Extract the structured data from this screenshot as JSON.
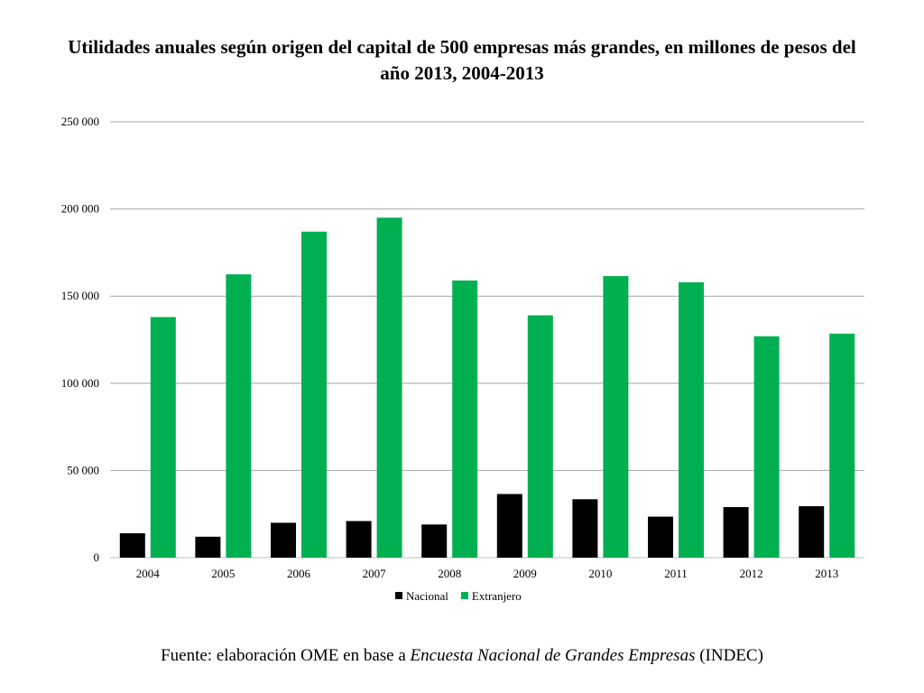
{
  "chart_data": {
    "type": "bar",
    "title": "Utilidades anuales según origen del capital de 500 empresas más grandes, en millones de pesos del año 2013, 2004-2013",
    "categories": [
      "2004",
      "2005",
      "2006",
      "2007",
      "2008",
      "2009",
      "2010",
      "2011",
      "2012",
      "2013"
    ],
    "series": [
      {
        "name": "Nacional",
        "color": "#000000",
        "values": [
          14000,
          12000,
          20000,
          21000,
          19000,
          36500,
          33500,
          23500,
          29000,
          29500
        ]
      },
      {
        "name": "Extranjero",
        "color": "#00b050",
        "values": [
          138000,
          162500,
          187000,
          195000,
          159000,
          139000,
          161500,
          158000,
          127000,
          128500
        ]
      }
    ],
    "ylim": [
      0,
      250000
    ],
    "yticks": [
      0,
      50000,
      100000,
      150000,
      200000,
      250000
    ],
    "ytick_labels": [
      "0",
      "50 000",
      "100 000",
      "150 000",
      "200 000",
      "250 000"
    ],
    "xlabel": "",
    "ylabel": "",
    "grid": true,
    "legend_position": "bottom"
  },
  "source": {
    "prefix": "Fuente: elaboración OME en base a ",
    "italic": "Encuesta Nacional de Grandes Empresas",
    "suffix": " (INDEC)"
  }
}
